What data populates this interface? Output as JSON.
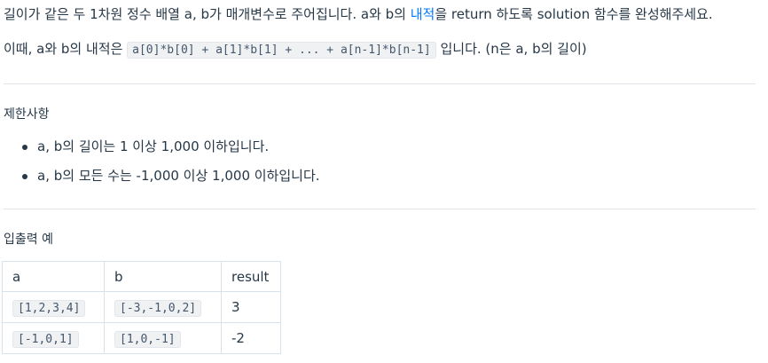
{
  "description": {
    "p1_before": "길이가 같은 두 1차원 정수 배열 a, b가 매개변수로 주어집니다. a와 b의 ",
    "p1_link": "내적",
    "p1_after": "을 return 하도록 solution 함수를 완성해주세요.",
    "p2_before": "이때, a와 b의 내적은 ",
    "p2_code": "a[0]*b[0] + a[1]*b[1] + ... + a[n-1]*b[n-1]",
    "p2_after": " 입니다. (n은 a, b의 길이)"
  },
  "constraints": {
    "title": "제한사항",
    "items": [
      "a, b의 길이는 1 이상 1,000 이하입니다.",
      "a, b의 모든 수는 -1,000 이상 1,000 이하입니다."
    ]
  },
  "examples": {
    "title": "입출력 예",
    "headers": [
      "a",
      "b",
      "result"
    ],
    "rows": [
      {
        "a": "[1,2,3,4]",
        "b": "[-3,-1,0,2]",
        "result": "3"
      },
      {
        "a": "[-1,0,1]",
        "b": "[1,0,-1]",
        "result": "-2"
      }
    ]
  },
  "colors": {
    "text": "#263747",
    "link": "#0078ff",
    "code_bg": "#f0f1f3",
    "border": "#d7e2eb"
  }
}
